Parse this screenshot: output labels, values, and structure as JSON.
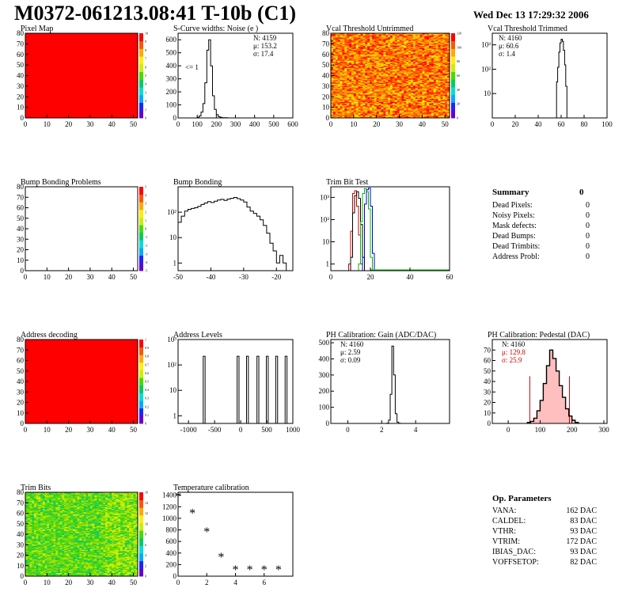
{
  "header": {
    "title": "M0372-061213.08:41 T-10b (C1)",
    "date": "Wed Dec 13 17:29:32 2006"
  },
  "colors": {
    "frame": "#000000",
    "red": "#cc0000",
    "green": "#00bb00",
    "blue": "#0000dd",
    "fill_red": "#ff0000"
  },
  "chart_data": [
    {
      "id": "pixel-map",
      "type": "heatmap",
      "title": "Pixel Map",
      "xlim": [
        0,
        52
      ],
      "ylim": [
        0,
        80
      ],
      "xticks": [
        0,
        10,
        20,
        30,
        40,
        50
      ],
      "yticks": [
        0,
        10,
        20,
        30,
        40,
        50,
        60,
        70,
        80
      ],
      "colorbar": [
        0,
        1,
        2,
        3,
        4,
        5,
        6,
        7,
        8,
        9,
        10
      ],
      "fill": "uniform-red",
      "value": 10
    },
    {
      "id": "scurve",
      "type": "bar",
      "title": "S-Curve widths: Noise (e )",
      "xlim": [
        0,
        600
      ],
      "ylim": [
        0,
        650
      ],
      "xticks": [
        0,
        100,
        200,
        300,
        400,
        500,
        600
      ],
      "yticks": [
        0,
        100,
        200,
        300,
        400,
        500,
        600
      ],
      "stats": {
        "N": "4159",
        "mu": "153.2",
        "sigma": "17.4"
      },
      "annotation": "<= 1",
      "bins": [
        [
          100,
          5
        ],
        [
          110,
          15
        ],
        [
          120,
          45
        ],
        [
          130,
          110
        ],
        [
          140,
          270
        ],
        [
          150,
          520
        ],
        [
          160,
          600
        ],
        [
          170,
          400
        ],
        [
          180,
          170
        ],
        [
          190,
          65
        ],
        [
          200,
          25
        ],
        [
          210,
          10
        ],
        [
          220,
          4
        ],
        [
          230,
          2
        ],
        [
          240,
          1
        ],
        [
          250,
          1
        ],
        [
          260,
          0
        ]
      ]
    },
    {
      "id": "vcal-untrimmed",
      "type": "heatmap",
      "title": "Vcal Threshold Untrimmed",
      "xlim": [
        0,
        52
      ],
      "ylim": [
        0,
        80
      ],
      "xticks": [
        0,
        10,
        20,
        30,
        40,
        50
      ],
      "yticks": [
        0,
        10,
        20,
        30,
        40,
        50,
        60,
        70,
        80
      ],
      "colorbar": [
        0,
        20,
        40,
        60,
        80,
        100,
        120
      ],
      "fill": "noisy-warm"
    },
    {
      "id": "vcal-trimmed",
      "type": "bar",
      "title": "Vcal Threshold Trimmed",
      "log": true,
      "xlim": [
        0,
        100
      ],
      "ylim": [
        1,
        3000
      ],
      "xticks": [
        0,
        20,
        40,
        60,
        80,
        100
      ],
      "yticklabels": [
        "10",
        "10²",
        "10³"
      ],
      "stats": {
        "N": "4160",
        "mu": "60.6",
        "sigma": "1.4"
      },
      "bins": [
        [
          56,
          30
        ],
        [
          57,
          120
        ],
        [
          58,
          500
        ],
        [
          59,
          1200
        ],
        [
          60,
          1700
        ],
        [
          61,
          1400
        ],
        [
          62,
          600
        ],
        [
          63,
          150
        ],
        [
          64,
          20
        ]
      ]
    },
    {
      "id": "bump-map",
      "type": "heatmap",
      "title": "Bump Bonding Problems",
      "xlim": [
        0,
        52
      ],
      "ylim": [
        0,
        80
      ],
      "xticks": [
        0,
        10,
        20,
        30,
        40,
        50
      ],
      "yticks": [
        0,
        10,
        20,
        30,
        40,
        50,
        60,
        70,
        80
      ],
      "colorbar": [
        -5,
        -4,
        -3,
        -2,
        -1,
        0,
        1,
        2,
        3,
        4,
        5
      ],
      "fill": "empty"
    },
    {
      "id": "bump-bonding",
      "type": "bar",
      "title": "Bump Bonding",
      "log": true,
      "xlim": [
        -50,
        -15
      ],
      "ylim": [
        0.5,
        1000
      ],
      "xticks": [
        -50,
        -40,
        -30,
        -20
      ],
      "yticklabels": [
        "1",
        "10",
        "10²"
      ],
      "bins": [
        [
          -50,
          40
        ],
        [
          -49,
          70
        ],
        [
          -48,
          110
        ],
        [
          -47,
          130
        ],
        [
          -46,
          140
        ],
        [
          -45,
          150
        ],
        [
          -44,
          170
        ],
        [
          -43,
          200
        ],
        [
          -42,
          230
        ],
        [
          -41,
          260
        ],
        [
          -40,
          240
        ],
        [
          -39,
          270
        ],
        [
          -38,
          300
        ],
        [
          -37,
          320
        ],
        [
          -36,
          290
        ],
        [
          -35,
          330
        ],
        [
          -34,
          350
        ],
        [
          -33,
          380
        ],
        [
          -32,
          340
        ],
        [
          -31,
          300
        ],
        [
          -30,
          250
        ],
        [
          -29,
          160
        ],
        [
          -28,
          110
        ],
        [
          -27,
          90
        ],
        [
          -26,
          70
        ],
        [
          -25,
          50
        ],
        [
          -24,
          30
        ],
        [
          -23,
          15
        ],
        [
          -22,
          6
        ],
        [
          -21,
          3
        ],
        [
          -20,
          1
        ],
        [
          -19,
          2
        ],
        [
          -18,
          1
        ]
      ]
    },
    {
      "id": "trim-bit",
      "type": "line",
      "title": "Trim Bit Test",
      "log": true,
      "xlim": [
        0,
        60
      ],
      "ylim": [
        0.5,
        3000
      ],
      "xticks": [
        0,
        20,
        40,
        60
      ],
      "yticklabels": [
        "1",
        "10",
        "10²",
        "10³"
      ],
      "series": [
        {
          "color": "red",
          "values": [
            [
              9,
              1
            ],
            [
              10,
              30
            ],
            [
              11,
              1500
            ],
            [
              12,
              2000
            ],
            [
              13,
              400
            ],
            [
              14,
              20
            ],
            [
              15,
              1
            ]
          ]
        },
        {
          "color": "black",
          "values": [
            [
              10,
              2
            ],
            [
              11,
              200
            ],
            [
              12,
              1200
            ],
            [
              13,
              1800
            ],
            [
              14,
              900
            ],
            [
              15,
              60
            ],
            [
              16,
              2
            ]
          ]
        },
        {
          "color": "green",
          "values": [
            [
              14,
              1
            ],
            [
              15,
              80
            ],
            [
              16,
              1500
            ],
            [
              17,
              2500
            ],
            [
              18,
              1800
            ],
            [
              19,
              300
            ],
            [
              20,
              2
            ]
          ]
        },
        {
          "color": "blue",
          "values": [
            [
              16,
              2
            ],
            [
              17,
              500
            ],
            [
              18,
              2200
            ],
            [
              19,
              2600
            ],
            [
              20,
              400
            ],
            [
              21,
              3
            ]
          ]
        }
      ]
    },
    {
      "id": "address-map",
      "type": "heatmap",
      "title": "Address decoding",
      "xlim": [
        0,
        52
      ],
      "ylim": [
        0,
        80
      ],
      "xticks": [
        0,
        10,
        20,
        30,
        40,
        50
      ],
      "yticks": [
        0,
        10,
        20,
        30,
        40,
        50,
        60,
        70,
        80
      ],
      "colorbar": [
        0,
        0.1,
        0.2,
        0.3,
        0.4,
        0.5,
        0.6,
        0.7,
        0.8,
        0.9,
        1
      ],
      "fill": "uniform-red",
      "value": 1
    },
    {
      "id": "address-levels",
      "type": "bar",
      "title": "Address Levels",
      "log": true,
      "xlim": [
        -1200,
        1000
      ],
      "ylim": [
        0.5,
        1000
      ],
      "xticks": [
        -1000,
        -500,
        0,
        500,
        1000
      ],
      "yticklabels": [
        "1",
        "10",
        "10²",
        "10³"
      ],
      "peaks": [
        -700,
        -50,
        130,
        330,
        510,
        690,
        870
      ],
      "peak_height": 220
    },
    {
      "id": "ph-gain",
      "type": "bar",
      "title": "PH Calibration: Gain (ADC/DAC)",
      "xlim": [
        -1,
        6
      ],
      "ylim": [
        0,
        520
      ],
      "xticks": [
        0,
        2,
        4
      ],
      "yticks": [
        0,
        100,
        200,
        300,
        400,
        500
      ],
      "stats": {
        "N": "4160",
        "mu": "2.59",
        "sigma": "0.09"
      },
      "bins": [
        [
          2.3,
          2
        ],
        [
          2.4,
          20
        ],
        [
          2.5,
          180
        ],
        [
          2.6,
          480
        ],
        [
          2.7,
          300
        ],
        [
          2.8,
          60
        ],
        [
          2.9,
          8
        ],
        [
          3.0,
          1
        ]
      ]
    },
    {
      "id": "ph-pedestal",
      "type": "bar",
      "title": "PH Calibration: Pedestal (DAC)",
      "xlim": [
        -50,
        310
      ],
      "ylim": [
        0,
        80
      ],
      "xticks": [
        0,
        100,
        200,
        300
      ],
      "yticks": [
        0,
        10,
        20,
        30,
        40,
        50,
        60,
        70
      ],
      "stats": {
        "N": "4160",
        "mu": "129.8",
        "sigma": "25.9"
      },
      "fit_color": "red",
      "bins": [
        [
          60,
          1
        ],
        [
          70,
          2
        ],
        [
          80,
          5
        ],
        [
          90,
          12
        ],
        [
          100,
          22
        ],
        [
          110,
          38
        ],
        [
          120,
          55
        ],
        [
          130,
          70
        ],
        [
          140,
          62
        ],
        [
          150,
          50
        ],
        [
          160,
          36
        ],
        [
          170,
          25
        ],
        [
          180,
          14
        ],
        [
          190,
          7
        ],
        [
          200,
          3
        ],
        [
          210,
          1
        ]
      ]
    },
    {
      "id": "trim-bits-map",
      "type": "heatmap",
      "title": "Trim Bits",
      "xlim": [
        0,
        52
      ],
      "ylim": [
        0,
        80
      ],
      "xticks": [
        0,
        10,
        20,
        30,
        40,
        50
      ],
      "yticks": [
        0,
        10,
        20,
        30,
        40,
        50,
        60,
        70,
        80
      ],
      "colorbar": [
        0,
        2,
        4,
        6,
        8,
        10,
        12,
        14,
        16
      ],
      "fill": "noisy-green"
    },
    {
      "id": "temperature",
      "type": "scatter",
      "title": "Temperature calibration",
      "xlim": [
        0,
        8
      ],
      "ylim": [
        0,
        1450
      ],
      "xticks": [
        0,
        2,
        4,
        6
      ],
      "yticks": [
        0,
        200,
        400,
        600,
        800,
        1000,
        1200,
        1400
      ],
      "values": [
        [
          0,
          1390
        ],
        [
          1,
          1100
        ],
        [
          2,
          780
        ],
        [
          3,
          340
        ],
        [
          4,
          120
        ],
        [
          5,
          120
        ],
        [
          6,
          120
        ],
        [
          7,
          120
        ]
      ]
    }
  ],
  "summary": {
    "title": "Summary",
    "value": "0",
    "rows": [
      {
        "label": "Dead Pixels:",
        "value": "0"
      },
      {
        "label": "Noisy Pixels:",
        "value": "0"
      },
      {
        "label": "Mask defects:",
        "value": "0"
      },
      {
        "label": "Dead Bumps:",
        "value": "0"
      },
      {
        "label": "Dead Trimbits:",
        "value": "0"
      },
      {
        "label": "Address Probl:",
        "value": "0"
      }
    ]
  },
  "op_params": {
    "title": "Op. Parameters",
    "rows": [
      {
        "label": "VANA:",
        "value": "162 DAC"
      },
      {
        "label": "CALDEL:",
        "value": "83 DAC"
      },
      {
        "label": "VTHR:",
        "value": "93 DAC"
      },
      {
        "label": "VTRIM:",
        "value": "172 DAC"
      },
      {
        "label": "IBIAS_DAC:",
        "value": "93 DAC"
      },
      {
        "label": "VOFFSETOP:",
        "value": "82 DAC"
      }
    ]
  }
}
